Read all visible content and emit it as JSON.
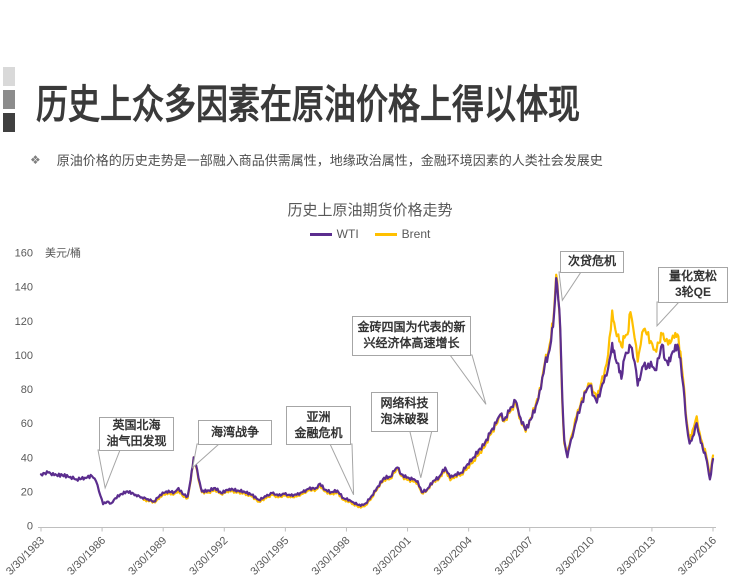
{
  "slide": {
    "title": "历史上众多因素在原油价格上得以体现",
    "bullet_marker": "❖",
    "bullet": "原油价格的历史走势是一部融入商品供需属性，地缘政治属性，金融环境因素的人类社会发展史"
  },
  "chart": {
    "title": "历史上原油期货价格走势",
    "unit_label": "美元/桶",
    "legend": [
      {
        "label": "WTI",
        "color": "#5B2D8E"
      },
      {
        "label": "Brent",
        "color": "#FFC000"
      }
    ],
    "y_ticks": [
      0,
      20,
      40,
      60,
      80,
      100,
      120,
      140,
      160
    ],
    "x_ticks": [
      "3/30/1983",
      "3/30/1986",
      "3/30/1989",
      "3/30/1992",
      "3/30/1995",
      "3/30/1998",
      "3/30/2001",
      "3/30/2004",
      "3/30/2007",
      "3/30/2010",
      "3/30/2013",
      "3/30/2016"
    ]
  },
  "chart_data": {
    "type": "line",
    "title": "历史上原油期货价格走势",
    "xlabel": "",
    "ylabel": "美元/桶",
    "ylim": [
      0,
      160
    ],
    "x_range": [
      1983.25,
      2016.25
    ],
    "grid": false,
    "legend_position": "top-center",
    "series": [
      {
        "name": "WTI",
        "color": "#5B2D8E",
        "points": [
          [
            1983.25,
            30
          ],
          [
            1983.6,
            31
          ],
          [
            1983.9,
            29.5
          ],
          [
            1984.3,
            29.5
          ],
          [
            1984.7,
            28.5
          ],
          [
            1985.0,
            27
          ],
          [
            1985.4,
            28
          ],
          [
            1985.75,
            29
          ],
          [
            1985.95,
            26
          ],
          [
            1986.1,
            20
          ],
          [
            1986.3,
            12.5
          ],
          [
            1986.5,
            14
          ],
          [
            1986.7,
            13
          ],
          [
            1986.9,
            16
          ],
          [
            1987.2,
            18.5
          ],
          [
            1987.5,
            20
          ],
          [
            1987.9,
            18
          ],
          [
            1988.2,
            16.5
          ],
          [
            1988.5,
            15.5
          ],
          [
            1988.8,
            14
          ],
          [
            1989.1,
            18
          ],
          [
            1989.4,
            20
          ],
          [
            1989.8,
            19.5
          ],
          [
            1990.0,
            22
          ],
          [
            1990.2,
            18.5
          ],
          [
            1990.45,
            17
          ],
          [
            1990.6,
            27
          ],
          [
            1990.75,
            40
          ],
          [
            1990.85,
            36
          ],
          [
            1991.05,
            25
          ],
          [
            1991.15,
            20
          ],
          [
            1991.5,
            20.5
          ],
          [
            1991.8,
            22
          ],
          [
            1992.1,
            19
          ],
          [
            1992.5,
            21.5
          ],
          [
            1992.9,
            20.5
          ],
          [
            1993.2,
            20
          ],
          [
            1993.6,
            18
          ],
          [
            1993.95,
            15
          ],
          [
            1994.3,
            17
          ],
          [
            1994.6,
            19
          ],
          [
            1994.9,
            17.5
          ],
          [
            1995.2,
            18.5
          ],
          [
            1995.5,
            17.5
          ],
          [
            1995.8,
            18
          ],
          [
            1996.1,
            19.5
          ],
          [
            1996.4,
            21.5
          ],
          [
            1996.75,
            22
          ],
          [
            1996.95,
            24.5
          ],
          [
            1997.2,
            21
          ],
          [
            1997.5,
            19.5
          ],
          [
            1997.8,
            20.5
          ],
          [
            1998.1,
            16
          ],
          [
            1998.4,
            15
          ],
          [
            1998.6,
            13.5
          ],
          [
            1998.95,
            11.5
          ],
          [
            1999.2,
            13
          ],
          [
            1999.5,
            17.5
          ],
          [
            1999.8,
            23
          ],
          [
            2000.1,
            28
          ],
          [
            2000.4,
            28.5
          ],
          [
            2000.6,
            32
          ],
          [
            2000.75,
            34
          ],
          [
            2000.95,
            30
          ],
          [
            2001.2,
            28
          ],
          [
            2001.5,
            27
          ],
          [
            2001.75,
            26
          ],
          [
            2001.95,
            19.5
          ],
          [
            2002.2,
            21
          ],
          [
            2002.5,
            26
          ],
          [
            2002.8,
            28.5
          ],
          [
            2003.1,
            34
          ],
          [
            2003.35,
            28
          ],
          [
            2003.6,
            30
          ],
          [
            2003.9,
            31
          ],
          [
            2004.2,
            36
          ],
          [
            2004.5,
            40
          ],
          [
            2004.8,
            45
          ],
          [
            2005.0,
            47
          ],
          [
            2005.3,
            54
          ],
          [
            2005.6,
            60
          ],
          [
            2005.8,
            65
          ],
          [
            2006.0,
            62
          ],
          [
            2006.25,
            67
          ],
          [
            2006.55,
            73
          ],
          [
            2006.8,
            63
          ],
          [
            2007.05,
            56
          ],
          [
            2007.3,
            62
          ],
          [
            2007.55,
            70
          ],
          [
            2007.8,
            80
          ],
          [
            2008.0,
            95
          ],
          [
            2008.15,
            100
          ],
          [
            2008.3,
            108
          ],
          [
            2008.45,
            125
          ],
          [
            2008.55,
            145
          ],
          [
            2008.65,
            133
          ],
          [
            2008.75,
            115
          ],
          [
            2008.85,
            75
          ],
          [
            2008.95,
            50
          ],
          [
            2009.1,
            40
          ],
          [
            2009.2,
            46
          ],
          [
            2009.35,
            52
          ],
          [
            2009.55,
            62
          ],
          [
            2009.75,
            70
          ],
          [
            2010.0,
            78
          ],
          [
            2010.2,
            82
          ],
          [
            2010.4,
            76
          ],
          [
            2010.55,
            72
          ],
          [
            2010.75,
            80
          ],
          [
            2010.95,
            88
          ],
          [
            2011.1,
            92
          ],
          [
            2011.3,
            107
          ],
          [
            2011.45,
            98
          ],
          [
            2011.6,
            95
          ],
          [
            2011.75,
            86
          ],
          [
            2011.9,
            98
          ],
          [
            2012.05,
            101
          ],
          [
            2012.2,
            105
          ],
          [
            2012.4,
            96
          ],
          [
            2012.55,
            82
          ],
          [
            2012.7,
            88
          ],
          [
            2012.85,
            94
          ],
          [
            2013.0,
            92
          ],
          [
            2013.2,
            96
          ],
          [
            2013.4,
            91
          ],
          [
            2013.6,
            98
          ],
          [
            2013.75,
            106
          ],
          [
            2013.9,
            97
          ],
          [
            2014.05,
            94
          ],
          [
            2014.2,
            100
          ],
          [
            2014.35,
            102
          ],
          [
            2014.5,
            106
          ],
          [
            2014.65,
            98
          ],
          [
            2014.8,
            81
          ],
          [
            2014.95,
            60
          ],
          [
            2015.1,
            48
          ],
          [
            2015.25,
            52
          ],
          [
            2015.45,
            60
          ],
          [
            2015.6,
            52
          ],
          [
            2015.75,
            45
          ],
          [
            2015.9,
            40
          ],
          [
            2016.0,
            34
          ],
          [
            2016.1,
            27
          ],
          [
            2016.25,
            39
          ]
        ]
      },
      {
        "name": "Brent",
        "color": "#FFC000",
        "points": [
          [
            1988.3,
            15
          ],
          [
            1988.6,
            14.5
          ],
          [
            1988.85,
            13.5
          ],
          [
            1989.1,
            17
          ],
          [
            1989.4,
            19
          ],
          [
            1989.8,
            18.5
          ],
          [
            1990.0,
            20.5
          ],
          [
            1990.2,
            17.5
          ],
          [
            1990.45,
            16
          ],
          [
            1990.6,
            26
          ],
          [
            1990.75,
            40
          ],
          [
            1990.85,
            35
          ],
          [
            1991.05,
            24
          ],
          [
            1991.15,
            19.5
          ],
          [
            1991.5,
            19.5
          ],
          [
            1991.8,
            21
          ],
          [
            1992.1,
            18.5
          ],
          [
            1992.5,
            20.5
          ],
          [
            1992.9,
            19.5
          ],
          [
            1993.2,
            19
          ],
          [
            1993.6,
            17
          ],
          [
            1993.95,
            14
          ],
          [
            1994.3,
            16
          ],
          [
            1994.6,
            18
          ],
          [
            1994.9,
            16.5
          ],
          [
            1995.2,
            17.5
          ],
          [
            1995.5,
            16.5
          ],
          [
            1995.8,
            17
          ],
          [
            1996.1,
            18.5
          ],
          [
            1996.4,
            20.5
          ],
          [
            1996.75,
            21
          ],
          [
            1996.95,
            23.5
          ],
          [
            1997.2,
            20
          ],
          [
            1997.5,
            18.5
          ],
          [
            1997.8,
            19.5
          ],
          [
            1998.1,
            15
          ],
          [
            1998.4,
            14
          ],
          [
            1998.6,
            12.5
          ],
          [
            1998.95,
            10.5
          ],
          [
            1999.2,
            12
          ],
          [
            1999.5,
            16.5
          ],
          [
            1999.8,
            22.5
          ],
          [
            2000.1,
            27
          ],
          [
            2000.4,
            27.5
          ],
          [
            2000.6,
            31
          ],
          [
            2000.75,
            33
          ],
          [
            2000.95,
            29
          ],
          [
            2001.2,
            27
          ],
          [
            2001.5,
            26
          ],
          [
            2001.75,
            25
          ],
          [
            2001.95,
            19
          ],
          [
            2002.2,
            20.5
          ],
          [
            2002.5,
            25.5
          ],
          [
            2002.8,
            27.5
          ],
          [
            2003.1,
            33
          ],
          [
            2003.35,
            26.5
          ],
          [
            2003.6,
            29
          ],
          [
            2003.9,
            30
          ],
          [
            2004.2,
            34
          ],
          [
            2004.5,
            38
          ],
          [
            2004.8,
            43
          ],
          [
            2005.0,
            45.5
          ],
          [
            2005.3,
            53
          ],
          [
            2005.6,
            59
          ],
          [
            2005.8,
            64
          ],
          [
            2006.0,
            61
          ],
          [
            2006.25,
            66
          ],
          [
            2006.55,
            72
          ],
          [
            2006.8,
            62
          ],
          [
            2007.05,
            55
          ],
          [
            2007.3,
            63
          ],
          [
            2007.55,
            71
          ],
          [
            2007.8,
            81
          ],
          [
            2008.0,
            96
          ],
          [
            2008.15,
            101
          ],
          [
            2008.3,
            110
          ],
          [
            2008.45,
            127
          ],
          [
            2008.55,
            147
          ],
          [
            2008.65,
            134
          ],
          [
            2008.75,
            113
          ],
          [
            2008.85,
            72
          ],
          [
            2008.95,
            48
          ],
          [
            2009.1,
            42
          ],
          [
            2009.2,
            47
          ],
          [
            2009.35,
            54
          ],
          [
            2009.55,
            64
          ],
          [
            2009.75,
            71
          ],
          [
            2010.0,
            79
          ],
          [
            2010.2,
            83
          ],
          [
            2010.4,
            78
          ],
          [
            2010.55,
            74
          ],
          [
            2010.75,
            83
          ],
          [
            2010.95,
            92
          ],
          [
            2011.1,
            100
          ],
          [
            2011.3,
            126
          ],
          [
            2011.45,
            115
          ],
          [
            2011.6,
            112
          ],
          [
            2011.75,
            105
          ],
          [
            2011.9,
            110
          ],
          [
            2012.05,
            112
          ],
          [
            2012.2,
            125
          ],
          [
            2012.4,
            110
          ],
          [
            2012.55,
            96
          ],
          [
            2012.7,
            106
          ],
          [
            2012.85,
            115
          ],
          [
            2013.0,
            112
          ],
          [
            2013.2,
            108
          ],
          [
            2013.4,
            103
          ],
          [
            2013.6,
            107
          ],
          [
            2013.75,
            112
          ],
          [
            2013.9,
            108
          ],
          [
            2014.05,
            106
          ],
          [
            2014.2,
            108
          ],
          [
            2014.35,
            110
          ],
          [
            2014.5,
            112
          ],
          [
            2014.65,
            102
          ],
          [
            2014.8,
            84
          ],
          [
            2014.95,
            62
          ],
          [
            2015.1,
            50
          ],
          [
            2015.25,
            56
          ],
          [
            2015.45,
            64
          ],
          [
            2015.6,
            54
          ],
          [
            2015.75,
            47
          ],
          [
            2015.9,
            42
          ],
          [
            2016.0,
            36
          ],
          [
            2016.1,
            30
          ],
          [
            2016.25,
            41
          ]
        ]
      }
    ],
    "annotations": [
      {
        "id": "uk-north-sea",
        "label": "英国北海\n油气田发现",
        "anchor_year": 1986.4,
        "anchor_value": 22
      },
      {
        "id": "gulf-war",
        "label": "海湾战争",
        "anchor_year": 1990.7,
        "anchor_value": 34
      },
      {
        "id": "asian-financial-crisis",
        "label": "亚洲\n金融危机",
        "anchor_year": 1998.6,
        "anchor_value": 18
      },
      {
        "id": "dotcom-bubble",
        "label": "网络科技\n泡沫破裂",
        "anchor_year": 2001.9,
        "anchor_value": 28
      },
      {
        "id": "brics-growth",
        "label": "金砖四国为代表的新\n兴经济体高速增长",
        "anchor_year": 2005.1,
        "anchor_value": 71
      },
      {
        "id": "subprime-crisis",
        "label": "次贷危机",
        "anchor_year": 2008.85,
        "anchor_value": 132
      },
      {
        "id": "qe-rounds",
        "label": "量化宽松\n3轮QE",
        "anchor_year": 2013.5,
        "anchor_value": 117
      }
    ]
  }
}
